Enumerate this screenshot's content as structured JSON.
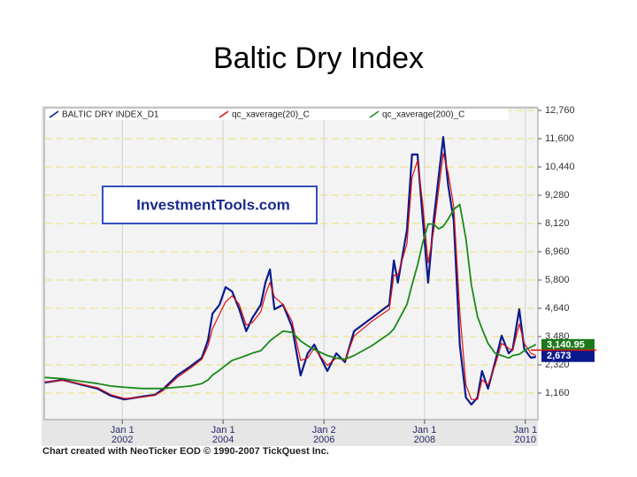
{
  "slide_title": "Baltic Dry Index",
  "chart_data": {
    "type": "line",
    "watermark": "InvestmentTools.com",
    "footer": "Chart created with NeoTicker EOD © 1990-2007 TickQuest Inc.",
    "x": [
      2000.46,
      2000.81,
      2001.16,
      2001.51,
      2001.77,
      2002.04,
      2002.39,
      2002.65,
      2002.82,
      2003.09,
      2003.35,
      2003.58,
      2003.7,
      2003.79,
      2003.93,
      2004.05,
      2004.18,
      2004.32,
      2004.46,
      2004.58,
      2004.75,
      2004.84,
      2004.93,
      2005.02,
      2005.19,
      2005.37,
      2005.54,
      2005.68,
      2005.81,
      2006.07,
      2006.25,
      2006.42,
      2006.6,
      2006.95,
      2007.3,
      2007.39,
      2007.47,
      2007.65,
      2007.75,
      2007.86,
      2007.96,
      2008.07,
      2008.18,
      2008.28,
      2008.37,
      2008.47,
      2008.58,
      2008.7,
      2008.82,
      2008.93,
      2009.05,
      2009.14,
      2009.26,
      2009.4,
      2009.53,
      2009.67,
      2009.75,
      2009.88,
      2009.98,
      2010.11,
      2010.21
    ],
    "series": [
      {
        "name": "BALTIC DRY INDEX_D1",
        "color": "#0a1a8c",
        "width": 2.2,
        "values": [
          1595,
          1700,
          1520,
          1340,
          1050,
          900,
          1015,
          1090,
          1340,
          1885,
          2250,
          2610,
          3335,
          4420,
          4785,
          5510,
          5330,
          4600,
          3700,
          4240,
          4785,
          5690,
          6235,
          4600,
          4785,
          3880,
          1885,
          2790,
          3150,
          2065,
          2790,
          2430,
          3700,
          4240,
          4785,
          6600,
          5690,
          7865,
          10950,
          10950,
          8410,
          5690,
          8230,
          10040,
          11670,
          9680,
          8230,
          3150,
          980,
          690,
          980,
          2065,
          1340,
          2430,
          3515,
          2790,
          2970,
          4600,
          2970,
          2610,
          2645
        ]
      },
      {
        "name": "qc_xaverage(20)_C",
        "color": "#e01010",
        "width": 1.2,
        "values": [
          1620,
          1680,
          1540,
          1380,
          1100,
          940,
          990,
          1070,
          1280,
          1800,
          2180,
          2550,
          3100,
          3800,
          4400,
          4900,
          5150,
          4800,
          3950,
          4050,
          4500,
          5200,
          5700,
          5100,
          4800,
          4100,
          2500,
          2600,
          3000,
          2300,
          2600,
          2500,
          3500,
          4100,
          4600,
          6000,
          6000,
          7300,
          10000,
          10700,
          9000,
          6500,
          7800,
          9500,
          11000,
          10200,
          8800,
          4500,
          1500,
          900,
          900,
          1700,
          1500,
          2300,
          3200,
          3000,
          2900,
          4000,
          3200,
          2800,
          2700
        ]
      },
      {
        "name": "qc_xaverage(200)_C",
        "color": "#1a8a1a",
        "width": 1.8,
        "values": [
          1800,
          1750,
          1650,
          1550,
          1450,
          1400,
          1350,
          1350,
          1350,
          1400,
          1450,
          1550,
          1700,
          1900,
          2100,
          2300,
          2500,
          2600,
          2700,
          2800,
          2900,
          3100,
          3300,
          3450,
          3700,
          3650,
          3300,
          3100,
          2950,
          2700,
          2600,
          2550,
          2700,
          3100,
          3600,
          3800,
          4100,
          4800,
          5600,
          6400,
          7300,
          8100,
          8100,
          7900,
          8000,
          8300,
          8700,
          8900,
          7500,
          5600,
          4300,
          3800,
          3200,
          2800,
          2700,
          2600,
          2700,
          2750,
          2900,
          3050,
          3150
        ]
      }
    ],
    "last_value_tags": [
      {
        "value": 3140.95,
        "label": "3,140.95",
        "color": "#1a7a1a"
      },
      {
        "value": 2673,
        "label": "2,673",
        "color": "#0a1a8c"
      }
    ],
    "xlim": [
      2000.45,
      2010.25
    ],
    "xticks": [
      {
        "value": 2002,
        "label": "Jan 1",
        "year": "2002"
      },
      {
        "value": 2004,
        "label": "Jan 1",
        "year": "2004"
      },
      {
        "value": 2006.003,
        "label": "Jan 2",
        "year": "2006"
      },
      {
        "value": 2008,
        "label": "Jan 1",
        "year": "2008"
      },
      {
        "value": 2010,
        "label": "Jan 1",
        "year": "2010"
      }
    ],
    "ylim": [
      0,
      12760
    ],
    "yticks": [
      {
        "value": 1160,
        "label": "1,160"
      },
      {
        "value": 2320,
        "label": "2,320"
      },
      {
        "value": 3480,
        "label": "3,480"
      },
      {
        "value": 4640,
        "label": "4,640"
      },
      {
        "value": 5800,
        "label": "5,800"
      },
      {
        "value": 6960,
        "label": "6,960"
      },
      {
        "value": 8120,
        "label": "8,120"
      },
      {
        "value": 9280,
        "label": "9,280"
      },
      {
        "value": 10440,
        "label": "10,440"
      },
      {
        "value": 11600,
        "label": "11,600"
      },
      {
        "value": 12760,
        "label": "12,760"
      }
    ],
    "grid": true,
    "yaxis_side": "right"
  }
}
